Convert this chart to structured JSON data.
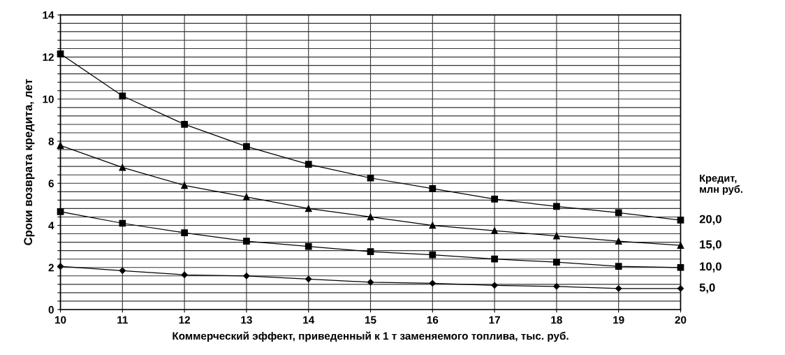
{
  "chart_data": {
    "type": "line",
    "xlabel": "Коммерческий эффект, приведенный к 1 т заменяемого топлива, тыс. руб.",
    "ylabel": "Сроки возврата кредита, лет",
    "legend_title": "Кредит,\nмлн руб.",
    "x": [
      10,
      11,
      12,
      13,
      14,
      15,
      16,
      17,
      18,
      19,
      20
    ],
    "series": [
      {
        "name": "20,0",
        "color": "#000000",
        "marker": "square",
        "values": [
          12.15,
          10.15,
          8.8,
          7.75,
          6.9,
          6.25,
          5.75,
          5.25,
          4.9,
          4.6,
          4.25
        ]
      },
      {
        "name": "15,0",
        "color": "#000000",
        "marker": "triangle",
        "values": [
          7.8,
          6.75,
          5.9,
          5.35,
          4.8,
          4.4,
          4.0,
          3.75,
          3.5,
          3.25,
          3.05
        ]
      },
      {
        "name": "10,0",
        "color": "#000000",
        "marker": "square",
        "values": [
          4.65,
          4.1,
          3.65,
          3.25,
          3.0,
          2.75,
          2.6,
          2.4,
          2.25,
          2.05,
          2.0
        ]
      },
      {
        "name": "5,0",
        "color": "#000000",
        "marker": "diamond",
        "values": [
          2.05,
          1.85,
          1.65,
          1.6,
          1.45,
          1.3,
          1.25,
          1.15,
          1.1,
          1.0,
          1.0
        ]
      }
    ],
    "xlim": [
      10,
      20
    ],
    "xticks": [
      10,
      11,
      12,
      13,
      14,
      15,
      16,
      17,
      18,
      19,
      20
    ],
    "ylim": [
      0,
      14
    ],
    "yticks": [
      0,
      {
        "value": 0.4,
        "label": null
      },
      {
        "value": 0.8,
        "label": null
      },
      {
        "value": 1.2,
        "label": null
      },
      {
        "value": 1.6,
        "label": null
      },
      2,
      {
        "value": 2.4,
        "label": null
      },
      {
        "value": 2.8,
        "label": null
      },
      {
        "value": 3.2,
        "label": null
      },
      {
        "value": 3.6,
        "label": null
      },
      4,
      {
        "value": 4.4,
        "label": null
      },
      {
        "value": 4.8,
        "label": null
      },
      {
        "value": 5.2,
        "label": null
      },
      {
        "value": 5.6,
        "label": null
      },
      6,
      {
        "value": 6.4,
        "label": null
      },
      {
        "value": 6.8,
        "label": null
      },
      {
        "value": 7.2,
        "label": null
      },
      {
        "value": 7.6,
        "label": null
      },
      8,
      {
        "value": 8.4,
        "label": null
      },
      {
        "value": 8.8,
        "label": null
      },
      {
        "value": 9.2,
        "label": null
      },
      {
        "value": 9.6,
        "label": null
      },
      10,
      {
        "value": 10.4,
        "label": null
      },
      {
        "value": 10.8,
        "label": null
      },
      {
        "value": 11.2,
        "label": null
      },
      {
        "value": 11.6,
        "label": null
      },
      12,
      {
        "value": 12.4,
        "label": null
      },
      {
        "value": 12.8,
        "label": null
      },
      {
        "value": 13.2,
        "label": null
      },
      {
        "value": 13.6,
        "label": null
      },
      14
    ],
    "grid": true,
    "legend": "right",
    "line_style": "solid"
  }
}
